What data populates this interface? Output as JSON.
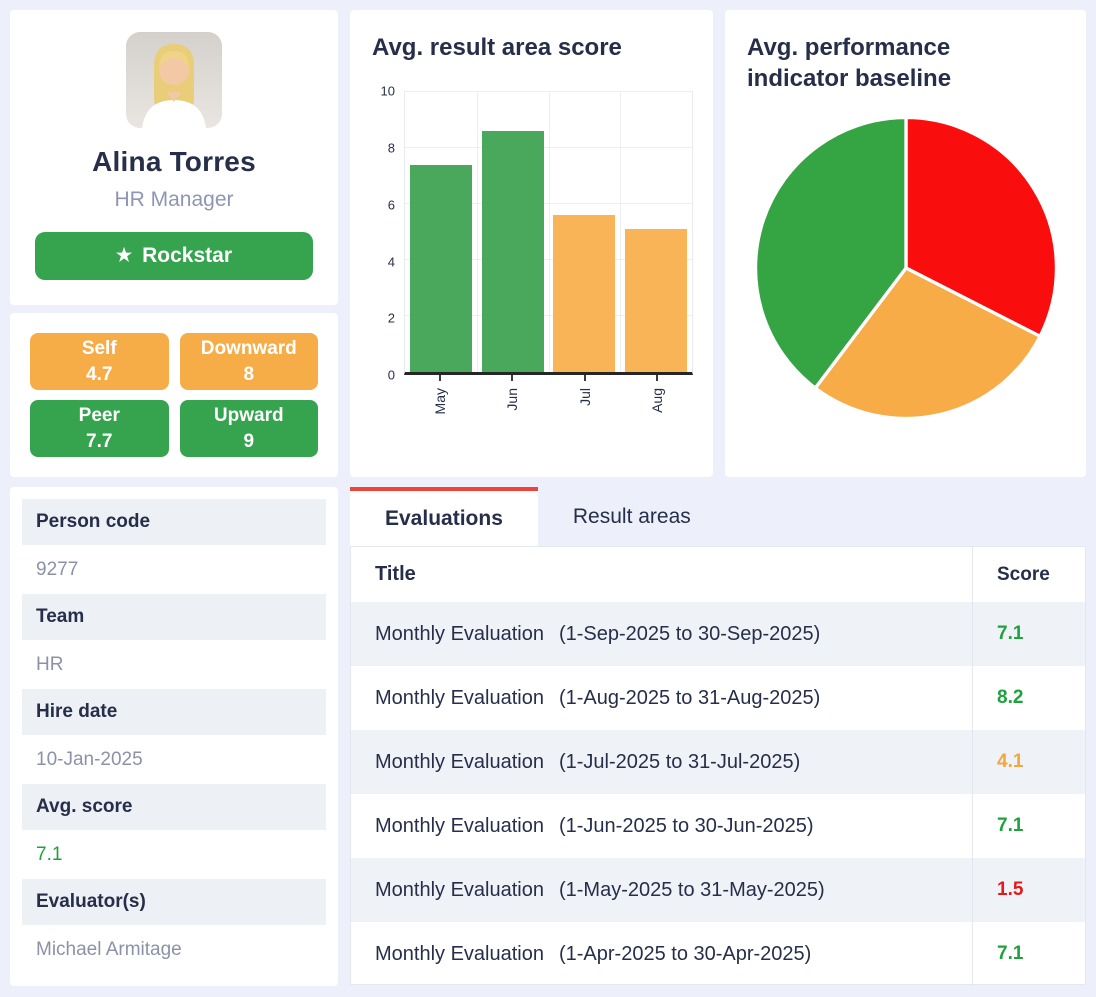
{
  "profile": {
    "name": "Alina Torres",
    "title": "HR Manager",
    "badge_icon": "★",
    "badge_label": "Rockstar"
  },
  "score_badges": [
    {
      "label": "Self",
      "value": "4.7",
      "color": "amber"
    },
    {
      "label": "Downward",
      "value": "8",
      "color": "amber"
    },
    {
      "label": "Peer",
      "value": "7.7",
      "color": "green"
    },
    {
      "label": "Upward",
      "value": "9",
      "color": "green"
    }
  ],
  "chart_data": [
    {
      "type": "bar",
      "title": "Avg. result area score",
      "categories": [
        "May",
        "Jun",
        "Jul",
        "Aug"
      ],
      "values": [
        7.4,
        8.6,
        5.6,
        5.1
      ],
      "bar_colors": [
        "#4aa85c",
        "#4aa85c",
        "#f8b456",
        "#f8b456"
      ],
      "xlabel": "",
      "ylabel": "",
      "ylim": [
        0,
        10
      ],
      "yticks": [
        0,
        2,
        4,
        6,
        8,
        10
      ],
      "grid": true,
      "legend": false
    },
    {
      "type": "pie",
      "title": "Avg. performance indicator baseline",
      "slices": [
        {
          "name": "red",
          "value": 32.5,
          "color": "#f90d0d"
        },
        {
          "name": "amber",
          "value": 27.8,
          "color": "#f8ac47"
        },
        {
          "name": "green",
          "value": 39.7,
          "color": "#35a544"
        }
      ],
      "start_angle_deg": 0,
      "direction": "clockwise",
      "legend": false
    }
  ],
  "details": [
    {
      "label": "Person code",
      "value": "9277",
      "value_color": ""
    },
    {
      "label": "Team",
      "value": "HR",
      "value_color": ""
    },
    {
      "label": "Hire date",
      "value": "10-Jan-2025",
      "value_color": ""
    },
    {
      "label": "Avg. score",
      "value": "7.1",
      "value_color": "green"
    },
    {
      "label": "Evaluator(s)",
      "value": "Michael Armitage",
      "value_color": ""
    }
  ],
  "tabs": [
    {
      "label": "Evaluations",
      "active": true
    },
    {
      "label": "Result areas",
      "active": false
    }
  ],
  "table": {
    "columns": [
      "Title",
      "Score"
    ],
    "rows": [
      {
        "title": "Monthly Evaluation",
        "period": "(1-Sep-2025 to 30-Sep-2025)",
        "score": "7.1",
        "score_color": "green"
      },
      {
        "title": "Monthly Evaluation",
        "period": "(1-Aug-2025 to 31-Aug-2025)",
        "score": "8.2",
        "score_color": "green"
      },
      {
        "title": "Monthly Evaluation",
        "period": "(1-Jul-2025 to 31-Jul-2025)",
        "score": "4.1",
        "score_color": "amber"
      },
      {
        "title": "Monthly Evaluation",
        "period": "(1-Jun-2025 to 30-Jun-2025)",
        "score": "7.1",
        "score_color": "green"
      },
      {
        "title": "Monthly Evaluation",
        "period": "(1-May-2025 to 31-May-2025)",
        "score": "1.5",
        "score_color": "red"
      },
      {
        "title": "Monthly Evaluation",
        "period": "(1-Apr-2025 to 30-Apr-2025)",
        "score": "7.1",
        "score_color": "green"
      }
    ]
  },
  "theme": {
    "page_bg": "#edf0fa",
    "card_bg": "#ffffff",
    "navy_text": "#262e49",
    "muted_text": "#8b92a8",
    "green": "#36a34f",
    "amber": "#f6ad48",
    "tab_accent": "#ee4338",
    "score_colors": {
      "green": "#1ea23c",
      "amber": "#f0a73c",
      "red": "#e41a1a"
    }
  }
}
